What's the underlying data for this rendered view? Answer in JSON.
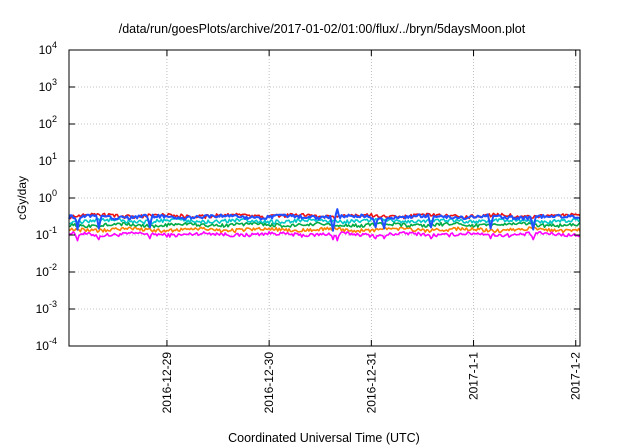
{
  "chart_data": {
    "type": "line",
    "title": "/data/run/goesPlots/archive/2017-01-02/01:00/flux/../bryn/5daysMoon.plot",
    "xlabel": "Coordinated Universal Time (UTC)",
    "ylabel": "cGy/day",
    "yscale": "log",
    "ylim": [
      0.0001,
      10000
    ],
    "y_ticks": [
      {
        "value": 0.0001,
        "base": "10",
        "exp": "-4"
      },
      {
        "value": 0.001,
        "base": "10",
        "exp": "-3"
      },
      {
        "value": 0.01,
        "base": "10",
        "exp": "-2"
      },
      {
        "value": 0.1,
        "base": "10",
        "exp": "-1"
      },
      {
        "value": 1,
        "base": "10",
        "exp": "0"
      },
      {
        "value": 10,
        "base": "10",
        "exp": "1"
      },
      {
        "value": 100,
        "base": "10",
        "exp": "2"
      },
      {
        "value": 1000,
        "base": "10",
        "exp": "3"
      },
      {
        "value": 10000,
        "base": "10",
        "exp": "4"
      }
    ],
    "xlim": [
      "2016-12-28 01:00",
      "2017-01-02 01:00"
    ],
    "x_ticks": [
      {
        "value": "2016-12-29 00:00",
        "label": "2016-12-29"
      },
      {
        "value": "2016-12-30 00:00",
        "label": "2016-12-30"
      },
      {
        "value": "2016-12-31 00:00",
        "label": "2016-12-31"
      },
      {
        "value": "2017-01-01 00:00",
        "label": "2017-1-1"
      },
      {
        "value": "2017-01-02 00:00",
        "label": "2017-1-2"
      }
    ],
    "grid": true,
    "legend": "none",
    "series": [
      {
        "color": "#ff00ff",
        "base": 0.105,
        "dips": [
          {
            "x": "2016-12-28 03:00",
            "y": 0.07
          },
          {
            "x": "2016-12-28 08:00",
            "y": 0.075
          },
          {
            "x": "2016-12-28 20:00",
            "y": 0.08
          },
          {
            "x": "2016-12-30 15:00",
            "y": 0.075
          },
          {
            "x": "2016-12-30 16:00",
            "y": 0.07
          },
          {
            "x": "2016-12-31 01:00",
            "y": 0.08
          },
          {
            "x": "2016-12-31 03:00",
            "y": 0.08
          },
          {
            "x": "2016-12-31 14:00",
            "y": 0.08
          },
          {
            "x": "2017-01-01 04:00",
            "y": 0.08
          },
          {
            "x": "2017-01-01 14:00",
            "y": 0.075
          }
        ]
      },
      {
        "color": "#ff7f00",
        "base": 0.14,
        "dips": []
      },
      {
        "color": "#00aa44",
        "base": 0.19,
        "dips": []
      },
      {
        "color": "#00c8c8",
        "base": 0.24,
        "dips": []
      },
      {
        "color": "#ee1111",
        "base": 0.33,
        "dips": []
      },
      {
        "color": "#1f4fff",
        "base": 0.31,
        "dips": [
          {
            "x": "2016-12-28 03:00",
            "y": 0.14
          },
          {
            "x": "2016-12-28 08:00",
            "y": 0.15
          },
          {
            "x": "2016-12-28 20:00",
            "y": 0.16
          },
          {
            "x": "2016-12-30 15:00",
            "y": 0.13
          },
          {
            "x": "2016-12-30 16:00",
            "y": 0.5
          },
          {
            "x": "2016-12-31 01:00",
            "y": 0.16
          },
          {
            "x": "2016-12-31 03:00",
            "y": 0.15
          },
          {
            "x": "2016-12-31 14:00",
            "y": 0.16
          },
          {
            "x": "2017-01-01 04:00",
            "y": 0.15
          },
          {
            "x": "2017-01-01 14:00",
            "y": 0.14
          }
        ]
      }
    ]
  }
}
